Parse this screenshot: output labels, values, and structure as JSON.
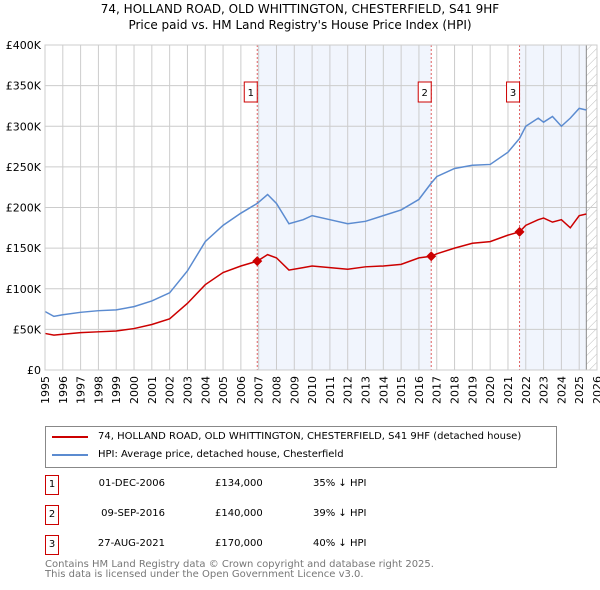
{
  "chart_data": {
    "type": "line",
    "title": "74, HOLLAND ROAD, OLD WHITTINGTON, CHESTERFIELD, S41 9HF",
    "subtitle": "Price paid vs. HM Land Registry's House Price Index (HPI)",
    "xlim": [
      1995,
      2026
    ],
    "ylim": [
      0,
      400000
    ],
    "x_ticks": [
      "1995",
      "1996",
      "1997",
      "1998",
      "1999",
      "2000",
      "2001",
      "2002",
      "2003",
      "2004",
      "2005",
      "2006",
      "2007",
      "2008",
      "2009",
      "2010",
      "2011",
      "2012",
      "2013",
      "2014",
      "2015",
      "2016",
      "2017",
      "2018",
      "2019",
      "2020",
      "2021",
      "2022",
      "2023",
      "2024",
      "2025",
      "2026"
    ],
    "y_ticks": [
      {
        "v": 0,
        "label": "£0"
      },
      {
        "v": 50000,
        "label": "£50K"
      },
      {
        "v": 100000,
        "label": "£100K"
      },
      {
        "v": 150000,
        "label": "£150K"
      },
      {
        "v": 200000,
        "label": "£200K"
      },
      {
        "v": 250000,
        "label": "£250K"
      },
      {
        "v": 300000,
        "label": "£300K"
      },
      {
        "v": 350000,
        "label": "£350K"
      },
      {
        "v": 400000,
        "label": "£400K"
      }
    ],
    "grid": true,
    "series": [
      {
        "name": "74, HOLLAND ROAD, OLD WHITTINGTON, CHESTERFIELD, S41 9HF (detached house)",
        "color": "#cc0000",
        "x": [
          1995,
          1995.5,
          1996,
          1997,
          1998,
          1999,
          2000,
          2001,
          2002,
          2003,
          2004,
          2005,
          2006,
          2006.92,
          2007.5,
          2008,
          2008.7,
          2009.5,
          2010,
          2011,
          2012,
          2013,
          2014,
          2015,
          2016,
          2016.69,
          2017,
          2018,
          2019,
          2020,
          2021,
          2021.65,
          2022,
          2022.7,
          2023,
          2023.5,
          2024,
          2024.5,
          2025,
          2025.4
        ],
        "y": [
          45000,
          43000,
          44000,
          46000,
          47000,
          48000,
          51000,
          56000,
          63000,
          82000,
          105000,
          120000,
          128000,
          134000,
          142000,
          138000,
          123000,
          126000,
          128000,
          126000,
          124000,
          127000,
          128000,
          130000,
          138000,
          140000,
          143000,
          150000,
          156000,
          158000,
          166000,
          170000,
          178000,
          185000,
          187000,
          182000,
          185000,
          175000,
          190000,
          192000
        ]
      },
      {
        "name": "HPI: Average price, detached house, Chesterfield",
        "color": "#5b8bd0",
        "x": [
          1995,
          1995.5,
          1996,
          1997,
          1998,
          1999,
          2000,
          2001,
          2002,
          2003,
          2004,
          2005,
          2006,
          2006.92,
          2007.5,
          2008,
          2008.7,
          2009.5,
          2010,
          2011,
          2012,
          2013,
          2014,
          2015,
          2016,
          2016.69,
          2017,
          2018,
          2019,
          2020,
          2021,
          2021.65,
          2022,
          2022.7,
          2023,
          2023.5,
          2024,
          2024.5,
          2025,
          2025.4
        ],
        "y": [
          72000,
          66000,
          68000,
          71000,
          73000,
          74000,
          78000,
          85000,
          95000,
          122000,
          158000,
          178000,
          193000,
          205000,
          216000,
          205000,
          180000,
          185000,
          190000,
          185000,
          180000,
          183000,
          190000,
          197000,
          210000,
          230000,
          238000,
          248000,
          252000,
          253000,
          268000,
          285000,
          300000,
          310000,
          305000,
          312000,
          300000,
          310000,
          322000,
          320000
        ]
      }
    ],
    "annotations": [
      {
        "id": "1",
        "x": 2006.92
      },
      {
        "id": "2",
        "x": 2016.69
      },
      {
        "id": "3",
        "x": 2021.65
      }
    ],
    "shaded_regions": [
      [
        2006.92,
        2016.69
      ],
      [
        2021.65,
        2025.4
      ]
    ],
    "hatched_after": 2025.4
  },
  "legend": {
    "red": "74, HOLLAND ROAD, OLD WHITTINGTON, CHESTERFIELD, S41 9HF (detached house)",
    "blue": "HPI: Average price, detached house, Chesterfield"
  },
  "transactions": [
    {
      "num": "1",
      "date": "01-DEC-2006",
      "price": "£134,000",
      "hpi": "35% ↓ HPI"
    },
    {
      "num": "2",
      "date": "09-SEP-2016",
      "price": "£140,000",
      "hpi": "39% ↓ HPI"
    },
    {
      "num": "3",
      "date": "27-AUG-2021",
      "price": "£170,000",
      "hpi": "40% ↓ HPI"
    }
  ],
  "footer": {
    "line1": "Contains HM Land Registry data © Crown copyright and database right 2025.",
    "line2": "This data is licensed under the Open Government Licence v3.0."
  }
}
